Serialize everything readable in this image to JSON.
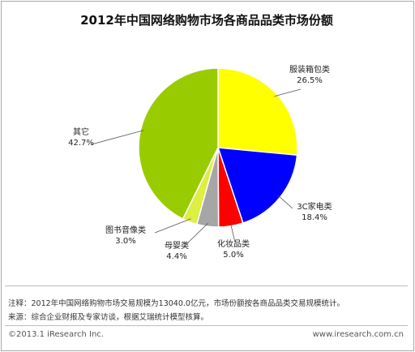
{
  "title": "2012年中国网络购物市场各商品品类市场份额",
  "chart_data": {
    "type": "pie",
    "slices": [
      {
        "label": "服装箱包类",
        "value": 26.5,
        "value_label": "26.5%",
        "color": "#ffff00"
      },
      {
        "label": "3C家电类",
        "value": 18.4,
        "value_label": "18.4%",
        "color": "#0000ff"
      },
      {
        "label": "化妆品类",
        "value": 5.0,
        "value_label": "5.0%",
        "color": "#ff0000"
      },
      {
        "label": "母婴类",
        "value": 4.4,
        "value_label": "4.4%",
        "color": "#a6a6a6"
      },
      {
        "label": "图书音像类",
        "value": 3.0,
        "value_label": "3.0%",
        "color": "#ddee44"
      },
      {
        "label": "其它",
        "value": 42.7,
        "value_label": "42.7%",
        "color": "#99cc00"
      }
    ]
  },
  "notes": {
    "note1": "注释：2012年中国网络购物市场交易规模为13040.0亿元，市场份额按各商品品类交易规模统计。",
    "note2": "来源：综合企业财报及专家访谈，根据艾瑞统计模型核算。"
  },
  "footer": {
    "copyright": "©2013.1 iResearch Inc.",
    "website": "www.iresearch.com.cn"
  }
}
